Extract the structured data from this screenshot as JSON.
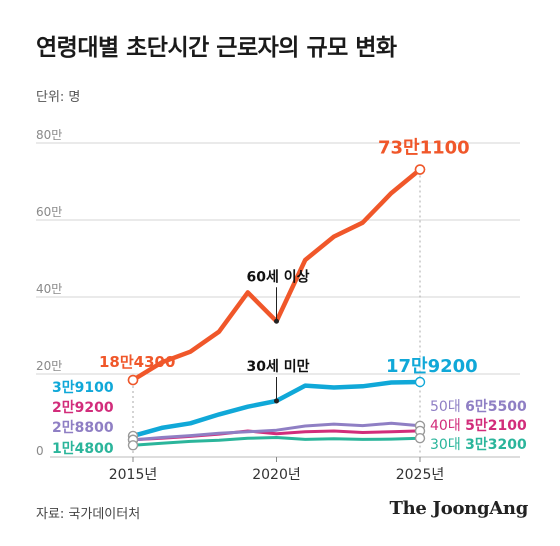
{
  "title": "연령대별 초단시간 근로자의 규모 변화",
  "unit_label": "단위: 명",
  "source": "자료: 국가데이터처",
  "brand": "The JoongAng",
  "chart_data": {
    "type": "line",
    "x": [
      2015,
      2016,
      2017,
      2018,
      2019,
      2020,
      2021,
      2022,
      2023,
      2024,
      2025
    ],
    "x_ticks": [
      {
        "value": 2015,
        "label": "2015년"
      },
      {
        "value": 2020,
        "label": "2020년"
      },
      {
        "value": 2025,
        "label": "2025년"
      }
    ],
    "y_ticks": [
      {
        "value": 0,
        "label": "0"
      },
      {
        "value": 200000,
        "label": "20만"
      },
      {
        "value": 400000,
        "label": "40만"
      },
      {
        "value": 600000,
        "label": "60만"
      },
      {
        "value": 800000,
        "label": "80만"
      }
    ],
    "ylim": [
      0,
      800000
    ],
    "grid": true,
    "series": [
      {
        "name": "60세 이상",
        "color": "#f0572a",
        "width": 4.5,
        "values": [
          184300,
          230000,
          258000,
          310000,
          412000,
          337000,
          496000,
          557000,
          593000,
          670000,
          731100
        ],
        "start_label": "18만4300",
        "end_label": "73만1100"
      },
      {
        "name": "30세 미만",
        "color": "#10a8d8",
        "width": 4.5,
        "values": [
          39100,
          60000,
          72000,
          95000,
          115000,
          130000,
          170000,
          165000,
          168000,
          178000,
          179200
        ],
        "start_label": "3만9100",
        "end_label": "17만9200"
      },
      {
        "name": "50대",
        "color": "#8f7fc4",
        "width": 3,
        "values": [
          28800,
          35000,
          40000,
          46000,
          50000,
          54000,
          65000,
          70000,
          66000,
          72000,
          65500
        ],
        "start_label": "2만8800",
        "end_label": "6만5500"
      },
      {
        "name": "40대",
        "color": "#d22d7b",
        "width": 3,
        "values": [
          29200,
          33000,
          38000,
          44000,
          52000,
          45000,
          50000,
          52000,
          48000,
          50000,
          52100
        ],
        "start_label": "2만9200",
        "end_label": "5만2100"
      },
      {
        "name": "30대",
        "color": "#2bb59b",
        "width": 3,
        "values": [
          14800,
          20000,
          25000,
          28000,
          33000,
          35000,
          30000,
          32000,
          30000,
          31000,
          33200
        ],
        "start_label": "1만4800",
        "end_label": "3만3200"
      }
    ],
    "annotations": [
      {
        "text": "60세 이상",
        "series": 0,
        "x": 2020
      },
      {
        "text": "30세 미만",
        "series": 1,
        "x": 2020
      }
    ]
  }
}
